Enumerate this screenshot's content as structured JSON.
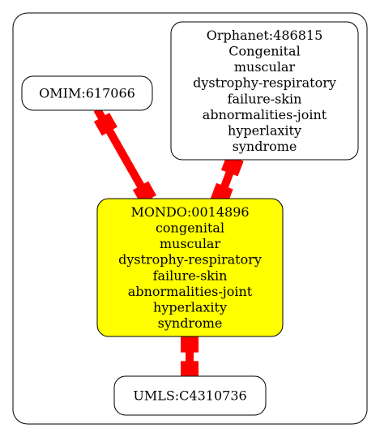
{
  "graph": {
    "nodes": [
      {
        "id": "omim",
        "lines": [
          "OMIM:617066"
        ],
        "fill": "#ffffff"
      },
      {
        "id": "orphanet",
        "lines": [
          "Orphanet:486815",
          "Congenital",
          "muscular",
          "dystrophy-respiratory",
          "failure-skin",
          "abnormalities-joint",
          "hyperlaxity",
          "syndrome"
        ],
        "fill": "#ffffff"
      },
      {
        "id": "mondo",
        "lines": [
          "MONDO:0014896",
          "congenital",
          "muscular",
          "dystrophy-respiratory",
          "failure-skin",
          "abnormalities-joint",
          "hyperlaxity",
          "syndrome"
        ],
        "fill": "#ffff00"
      },
      {
        "id": "umls",
        "lines": [
          "UMLS:C4310736"
        ],
        "fill": "#ffffff"
      }
    ],
    "edges": [
      {
        "from": "omim",
        "to": "mondo",
        "color": "#ff0000"
      },
      {
        "from": "orphanet",
        "to": "mondo",
        "color": "#ff0000"
      },
      {
        "from": "mondo",
        "to": "umls",
        "color": "#ff0000"
      }
    ]
  }
}
